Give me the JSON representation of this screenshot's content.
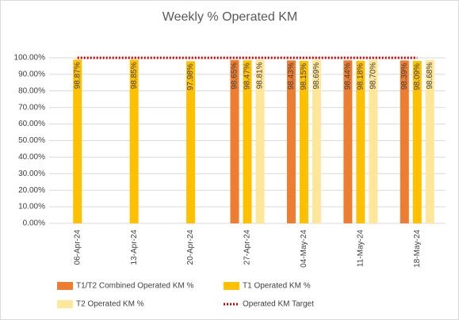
{
  "chart_data": {
    "type": "bar",
    "title": "Weekly % Operated KM",
    "categories": [
      "06-Apr-24",
      "13-Apr-24",
      "20-Apr-24",
      "27-Apr-24",
      "04-May-24",
      "11-May-24",
      "18-May-24"
    ],
    "series": [
      {
        "name": "T1/T2 Combined Operated KM %",
        "color": "#ed7d31",
        "type": "bar",
        "values": [
          null,
          null,
          null,
          98.65,
          98.43,
          98.44,
          98.39
        ],
        "value_labels": [
          null,
          null,
          null,
          "98.65%",
          "98.43%",
          "98.44%",
          "98.39%"
        ]
      },
      {
        "name": "T1 Operated KM %",
        "color": "#ffc000",
        "type": "bar",
        "values": [
          98.87,
          98.85,
          97.98,
          98.47,
          98.15,
          98.18,
          98.09
        ],
        "value_labels": [
          "98.87%",
          "98.85%",
          "97.98%",
          "98.47%",
          "98.15%",
          "98.18%",
          "98.09%"
        ]
      },
      {
        "name": "T2 Operated KM %",
        "color": "#ffe699",
        "type": "bar",
        "values": [
          null,
          null,
          null,
          98.81,
          98.69,
          98.7,
          98.68
        ],
        "value_labels": [
          null,
          null,
          null,
          "98.81%",
          "98.69%",
          "98.70%",
          "98.68%"
        ]
      },
      {
        "name": "Operated KM Target",
        "color": "#c00000",
        "type": "line",
        "style": "dotted",
        "values": [
          100,
          100,
          100,
          100,
          100,
          100,
          100
        ]
      }
    ],
    "ylim": [
      0,
      100
    ],
    "yticks": [
      {
        "value": 0,
        "label": "0.00%"
      },
      {
        "value": 10,
        "label": "10.00%"
      },
      {
        "value": 20,
        "label": "20.00%"
      },
      {
        "value": 30,
        "label": "30.00%"
      },
      {
        "value": 40,
        "label": "40.00%"
      },
      {
        "value": 50,
        "label": "50.00%"
      },
      {
        "value": 60,
        "label": "60.00%"
      },
      {
        "value": 70,
        "label": "70.00%"
      },
      {
        "value": 80,
        "label": "80.00%"
      },
      {
        "value": 90,
        "label": "90.00%"
      },
      {
        "value": 100,
        "label": "100.00%"
      }
    ],
    "grid": true,
    "legend": "bottom"
  }
}
